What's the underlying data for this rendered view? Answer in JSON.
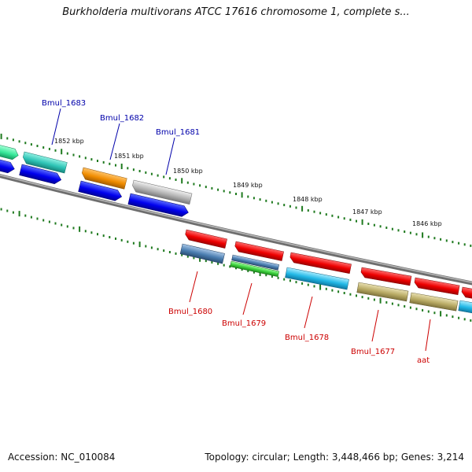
{
  "title": "Burkholderia multivorans ATCC 17616 chromosome 1, complete s...",
  "footer": {
    "accession": "Accession: NC_010084",
    "summary": "Topology: circular; Length: 3,448,466 bp; Genes: 3,214"
  },
  "colors": {
    "backbone": "#808080",
    "minor_tick": "#1f7a1f",
    "label_forward": "#0000aa",
    "label_reverse": "#cc0000"
  },
  "ruler": {
    "labels": [
      "1852 kbp",
      "1851 kbp",
      "1850 kbp",
      "1849 kbp",
      "1848 kbp",
      "1847 kbp",
      "1846 kbp"
    ]
  },
  "genes": {
    "labeled_forward": [
      {
        "label": "Bmul_1683",
        "color": "#2ec4b6"
      },
      {
        "label": "Bmul_1682",
        "color": "#f08c00"
      },
      {
        "label": "Bmul_1681",
        "color": "#b4b4b4"
      }
    ],
    "labeled_reverse": [
      {
        "label": "Bmul_1680",
        "color": "#4a7db0"
      },
      {
        "label": "Bmul_1679",
        "color": "#3ccf3c"
      },
      {
        "label": "Bmul_1678",
        "color": "#22b8e6"
      },
      {
        "label": "Bmul_1677",
        "color": "#b8aa64"
      },
      {
        "label": "aat",
        "color": "#b8aa64"
      }
    ]
  }
}
